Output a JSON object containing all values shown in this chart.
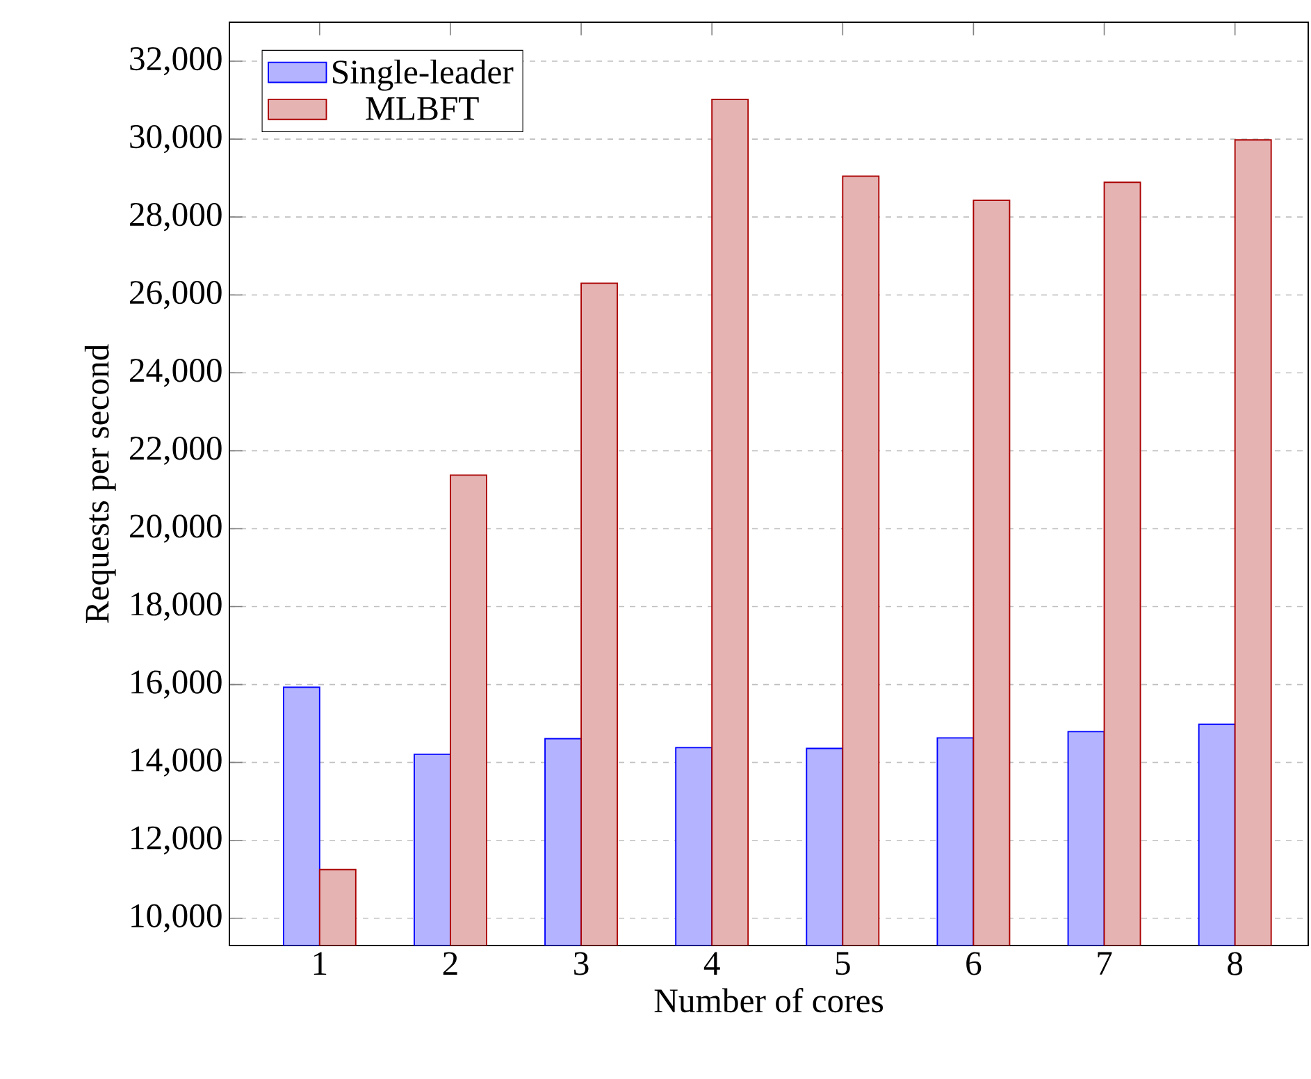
{
  "chart_data": {
    "type": "bar",
    "xlabel": "Number of cores",
    "ylabel": "Requests per second",
    "categories": [
      "1",
      "2",
      "3",
      "4",
      "5",
      "6",
      "7",
      "8"
    ],
    "series": [
      {
        "name": "Single-leader",
        "color": "#b3b3ff",
        "values": [
          15930,
          14210,
          14610,
          14380,
          14360,
          14630,
          14790,
          14980
        ]
      },
      {
        "name": "MLBFT",
        "color": "#e6b3b3",
        "values": [
          11250,
          21375,
          26300,
          31020,
          29050,
          28430,
          28890,
          29980
        ]
      }
    ],
    "ylim": [
      9300,
      33000
    ],
    "yticks": [
      {
        "value": 10000,
        "label": "10,000"
      },
      {
        "value": 12000,
        "label": "12,000"
      },
      {
        "value": 14000,
        "label": "14,000"
      },
      {
        "value": 16000,
        "label": "16,000"
      },
      {
        "value": 18000,
        "label": "18,000"
      },
      {
        "value": 20000,
        "label": "20,000"
      },
      {
        "value": 22000,
        "label": "22,000"
      },
      {
        "value": 24000,
        "label": "24,000"
      },
      {
        "value": 26000,
        "label": "26,000"
      },
      {
        "value": 28000,
        "label": "28,000"
      },
      {
        "value": 30000,
        "label": "30,000"
      },
      {
        "value": 32000,
        "label": "32,000"
      }
    ],
    "grid": "y",
    "legend": "top left"
  }
}
